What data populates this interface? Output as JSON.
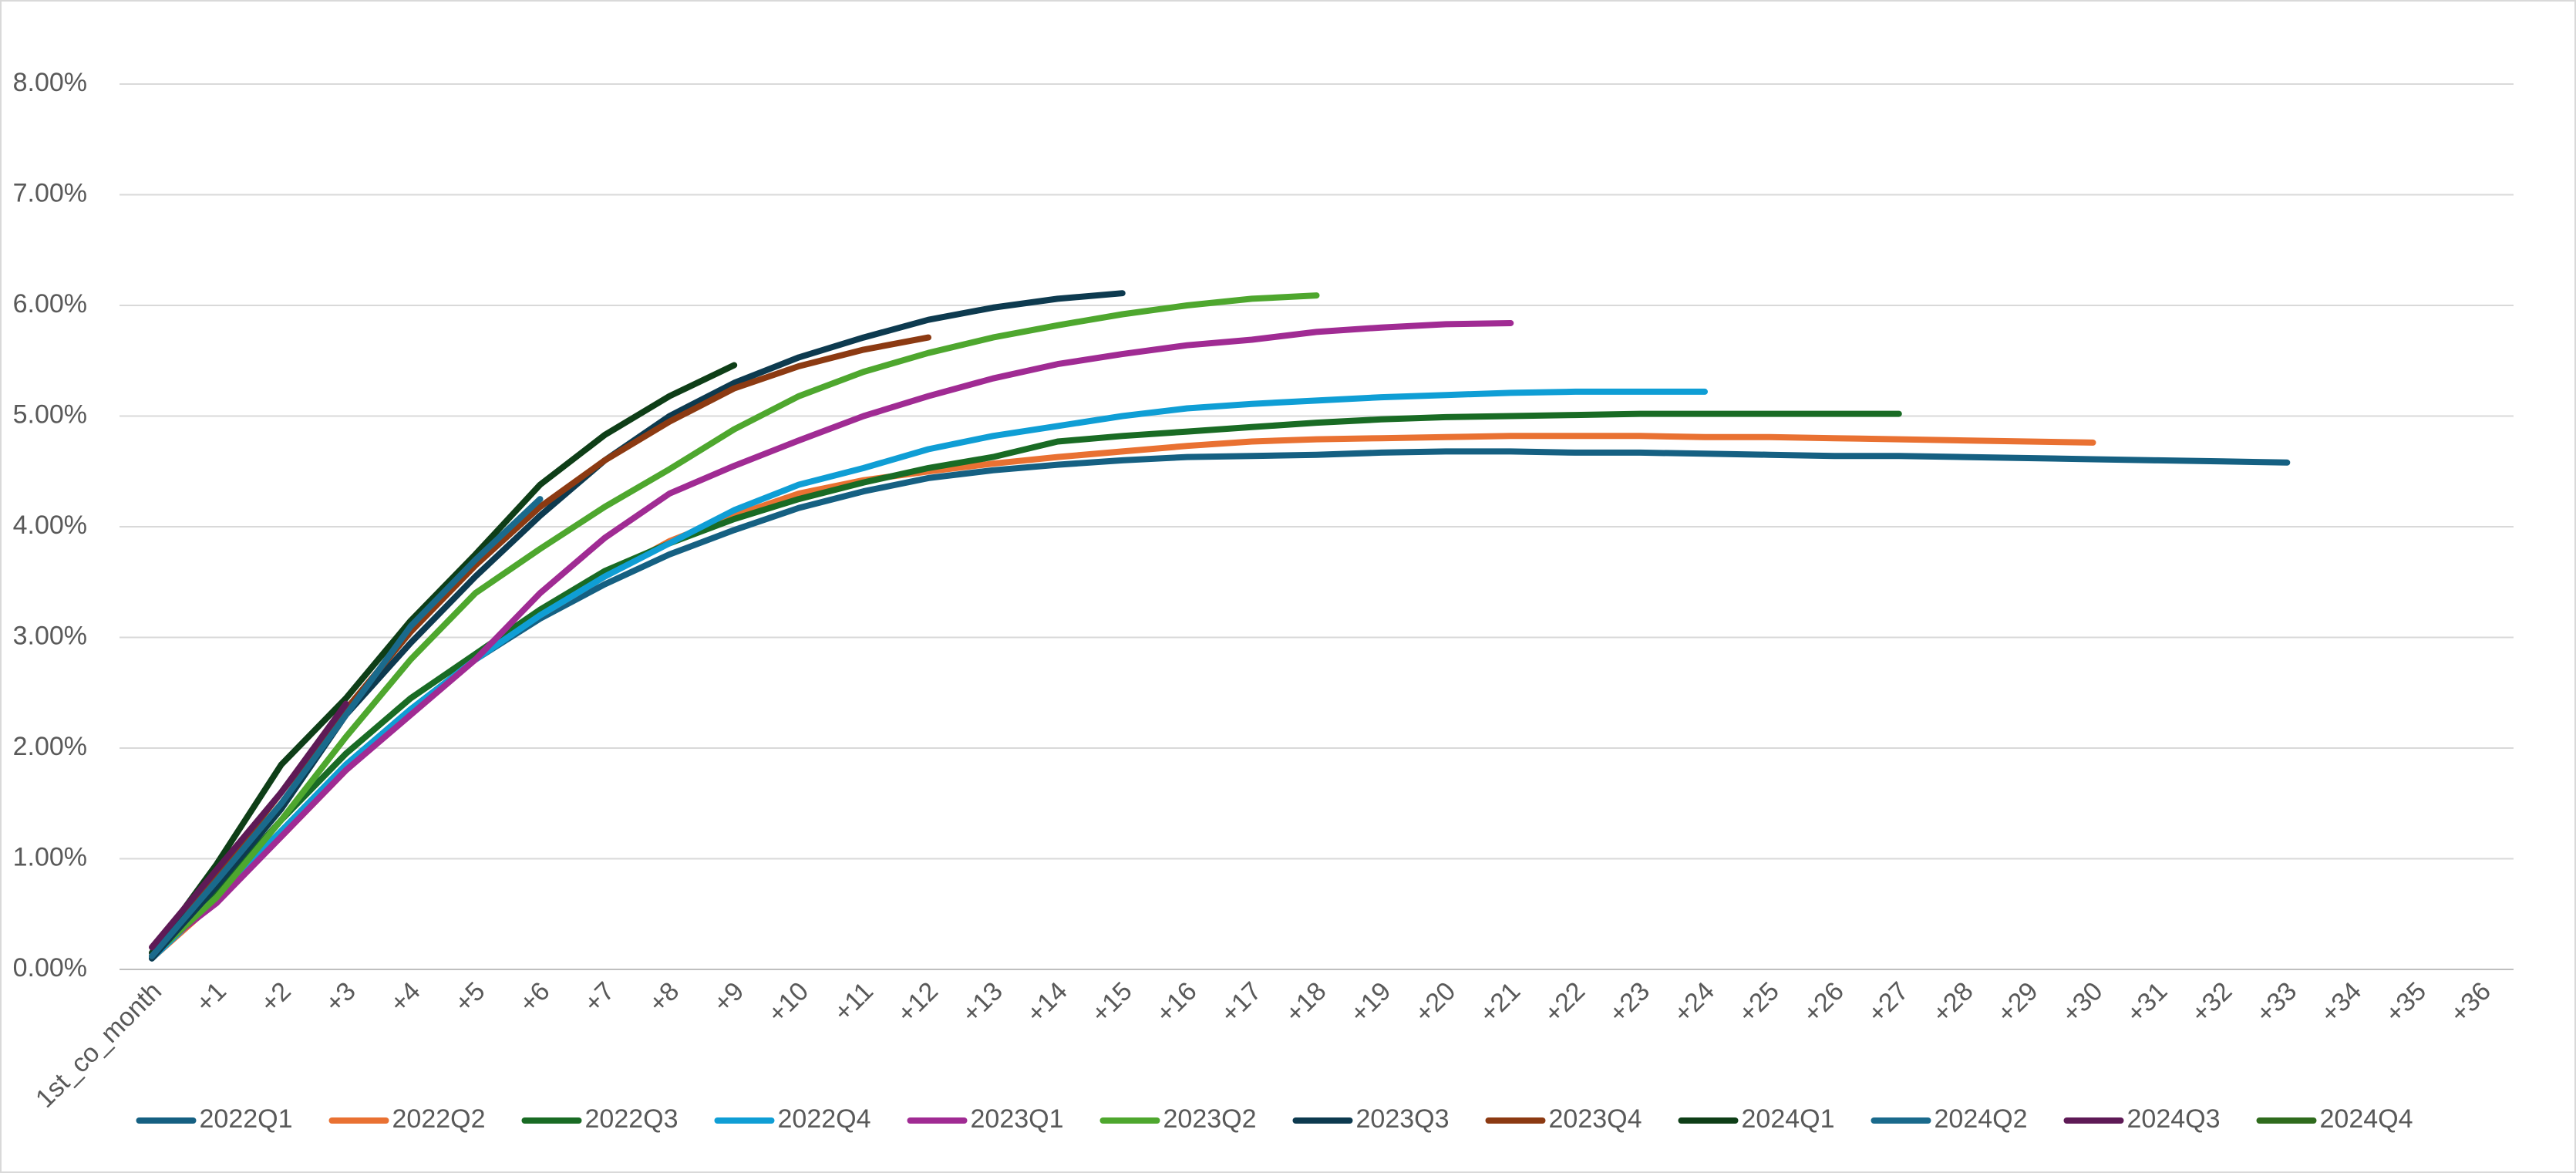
{
  "chart_data": {
    "type": "line",
    "categories": [
      "1st_co_month",
      "+1",
      "+2",
      "+3",
      "+4",
      "+5",
      "+6",
      "+7",
      "+8",
      "+9",
      "+10",
      "+11",
      "+12",
      "+13",
      "+14",
      "+15",
      "+16",
      "+17",
      "+18",
      "+19",
      "+20",
      "+21",
      "+22",
      "+23",
      "+24",
      "+25",
      "+26",
      "+27",
      "+28",
      "+29",
      "+30",
      "+31",
      "+32",
      "+33",
      "+34",
      "+35",
      "+36"
    ],
    "ylim": [
      0,
      8
    ],
    "yticks": [
      {
        "value": 0,
        "label": "0.00%"
      },
      {
        "value": 1,
        "label": "1.00%"
      },
      {
        "value": 2,
        "label": "2.00%"
      },
      {
        "value": 3,
        "label": "3.00%"
      },
      {
        "value": 4,
        "label": "4.00%"
      },
      {
        "value": 5,
        "label": "5.00%"
      },
      {
        "value": 6,
        "label": "6.00%"
      },
      {
        "value": 7,
        "label": "7.00%"
      },
      {
        "value": 8,
        "label": "8.00%"
      }
    ],
    "grid": true,
    "legend": "bottom",
    "series": [
      {
        "name": "2022Q1",
        "color": "#156082",
        "values": [
          0.1,
          0.65,
          1.25,
          1.85,
          2.35,
          2.8,
          3.17,
          3.48,
          3.75,
          3.97,
          4.17,
          4.32,
          4.44,
          4.51,
          4.56,
          4.6,
          4.63,
          4.64,
          4.65,
          4.67,
          4.68,
          4.68,
          4.67,
          4.67,
          4.66,
          4.65,
          4.64,
          4.64,
          4.63,
          4.62,
          4.61,
          4.6,
          4.59,
          4.58,
          null,
          null,
          null
        ]
      },
      {
        "name": "2022Q2",
        "color": "#E97132",
        "values": [
          0.1,
          0.62,
          1.2,
          1.8,
          2.32,
          2.82,
          3.2,
          3.55,
          3.87,
          4.1,
          4.3,
          4.42,
          4.5,
          4.57,
          4.63,
          4.68,
          4.73,
          4.77,
          4.79,
          4.8,
          4.81,
          4.82,
          4.82,
          4.82,
          4.81,
          4.81,
          4.8,
          4.79,
          4.78,
          4.77,
          4.76,
          null,
          null,
          null,
          null,
          null,
          null
        ]
      },
      {
        "name": "2022Q3",
        "color": "#196B24",
        "values": [
          0.12,
          0.7,
          1.35,
          1.95,
          2.45,
          2.85,
          3.25,
          3.6,
          3.85,
          4.07,
          4.25,
          4.4,
          4.53,
          4.63,
          4.77,
          4.82,
          4.86,
          4.9,
          4.94,
          4.97,
          4.99,
          5.0,
          5.01,
          5.02,
          5.02,
          5.02,
          5.02,
          5.02,
          null,
          null,
          null,
          null,
          null,
          null,
          null,
          null,
          null
        ]
      },
      {
        "name": "2022Q4",
        "color": "#0F9ED5",
        "values": [
          0.1,
          0.65,
          1.25,
          1.85,
          2.35,
          2.8,
          3.2,
          3.55,
          3.85,
          4.15,
          4.38,
          4.53,
          4.7,
          4.82,
          4.91,
          5.0,
          5.07,
          5.11,
          5.14,
          5.17,
          5.19,
          5.21,
          5.22,
          5.22,
          5.22,
          null,
          null,
          null,
          null,
          null,
          null,
          null,
          null,
          null,
          null,
          null,
          null
        ]
      },
      {
        "name": "2023Q1",
        "color": "#A02B93",
        "values": [
          0.15,
          0.6,
          1.2,
          1.8,
          2.3,
          2.8,
          3.4,
          3.9,
          4.3,
          4.55,
          4.78,
          5.0,
          5.18,
          5.34,
          5.47,
          5.56,
          5.64,
          5.69,
          5.76,
          5.8,
          5.83,
          5.84,
          null,
          null,
          null,
          null,
          null,
          null,
          null,
          null,
          null,
          null,
          null,
          null,
          null,
          null,
          null
        ]
      },
      {
        "name": "2023Q2",
        "color": "#4EA72E",
        "values": [
          0.12,
          0.65,
          1.35,
          2.1,
          2.8,
          3.4,
          3.8,
          4.18,
          4.52,
          4.88,
          5.18,
          5.4,
          5.57,
          5.71,
          5.82,
          5.92,
          6.0,
          6.06,
          6.09,
          null,
          null,
          null,
          null,
          null,
          null,
          null,
          null,
          null,
          null,
          null,
          null,
          null,
          null,
          null,
          null,
          null,
          null
        ]
      },
      {
        "name": "2023Q3",
        "color": "#0D3A4F",
        "values": [
          0.1,
          0.75,
          1.45,
          2.3,
          2.95,
          3.55,
          4.1,
          4.6,
          5.0,
          5.3,
          5.53,
          5.71,
          5.87,
          5.98,
          6.06,
          6.11,
          null,
          null,
          null,
          null,
          null,
          null,
          null,
          null,
          null,
          null,
          null,
          null,
          null,
          null,
          null,
          null,
          null,
          null,
          null,
          null,
          null
        ]
      },
      {
        "name": "2023Q4",
        "color": "#8C3A12",
        "values": [
          0.12,
          0.85,
          1.6,
          2.35,
          3.05,
          3.65,
          4.18,
          4.6,
          4.95,
          5.25,
          5.45,
          5.6,
          5.71,
          null,
          null,
          null,
          null,
          null,
          null,
          null,
          null,
          null,
          null,
          null,
          null,
          null,
          null,
          null,
          null,
          null,
          null,
          null,
          null,
          null,
          null,
          null,
          null
        ]
      },
      {
        "name": "2024Q1",
        "color": "#0E3E17",
        "values": [
          0.15,
          0.95,
          1.85,
          2.45,
          3.15,
          3.75,
          4.38,
          4.83,
          5.18,
          5.46,
          null,
          null,
          null,
          null,
          null,
          null,
          null,
          null,
          null,
          null,
          null,
          null,
          null,
          null,
          null,
          null,
          null,
          null,
          null,
          null,
          null,
          null,
          null,
          null,
          null,
          null,
          null
        ]
      },
      {
        "name": "2024Q2",
        "color": "#1A6A8C",
        "values": [
          0.12,
          0.8,
          1.5,
          2.3,
          3.1,
          3.7,
          4.25,
          null,
          null,
          null,
          null,
          null,
          null,
          null,
          null,
          null,
          null,
          null,
          null,
          null,
          null,
          null,
          null,
          null,
          null,
          null,
          null,
          null,
          null,
          null,
          null,
          null,
          null,
          null,
          null,
          null,
          null
        ]
      },
      {
        "name": "2024Q3",
        "color": "#5E1A56",
        "values": [
          0.2,
          0.9,
          1.6,
          2.4,
          null,
          null,
          null,
          null,
          null,
          null,
          null,
          null,
          null,
          null,
          null,
          null,
          null,
          null,
          null,
          null,
          null,
          null,
          null,
          null,
          null,
          null,
          null,
          null,
          null,
          null,
          null,
          null,
          null,
          null,
          null,
          null,
          null
        ]
      },
      {
        "name": "2024Q4",
        "color": "#2F6B1D",
        "values": [
          0.15,
          null,
          null,
          null,
          null,
          null,
          null,
          null,
          null,
          null,
          null,
          null,
          null,
          null,
          null,
          null,
          null,
          null,
          null,
          null,
          null,
          null,
          null,
          null,
          null,
          null,
          null,
          null,
          null,
          null,
          null,
          null,
          null,
          null,
          null,
          null,
          null
        ]
      }
    ]
  }
}
